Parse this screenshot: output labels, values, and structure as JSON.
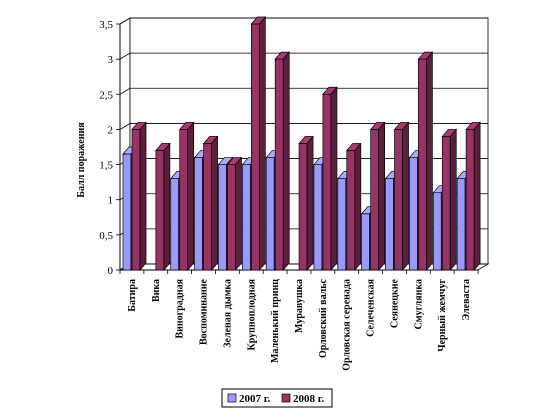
{
  "chart_data": {
    "type": "bar",
    "title": "",
    "xlabel": "",
    "ylabel": "Балл поражения",
    "ylim": [
      0,
      3.5
    ],
    "yticks": [
      "0",
      "0,5",
      "1",
      "1,5",
      "2",
      "2,5",
      "3",
      "3,5"
    ],
    "grid": true,
    "legend_position": "bottom",
    "categories": [
      "Батира",
      "Вика",
      "Виноградная",
      "Воспоминание",
      "Зеленая дымка",
      "Крупноплодная",
      "Маленький принц",
      "Муравушка",
      "Орловский вальс",
      "Орловская серенада",
      "Селеченская",
      "Сеянецкие",
      "Смуглянка",
      "Черный жемчуг",
      "Элеваста"
    ],
    "series": [
      {
        "name": "2007 г.",
        "color": "#9999ff",
        "values": [
          1.65,
          0,
          1.3,
          1.6,
          1.5,
          1.5,
          1.6,
          0,
          1.5,
          1.3,
          0.8,
          1.3,
          1.6,
          1.1,
          1.3
        ]
      },
      {
        "name": "2008 г.",
        "color": "#993366",
        "values": [
          2.0,
          1.7,
          2.0,
          1.8,
          1.5,
          3.5,
          3.0,
          1.8,
          2.5,
          1.7,
          2.0,
          2.0,
          3.0,
          1.9,
          2.0
        ]
      }
    ]
  }
}
